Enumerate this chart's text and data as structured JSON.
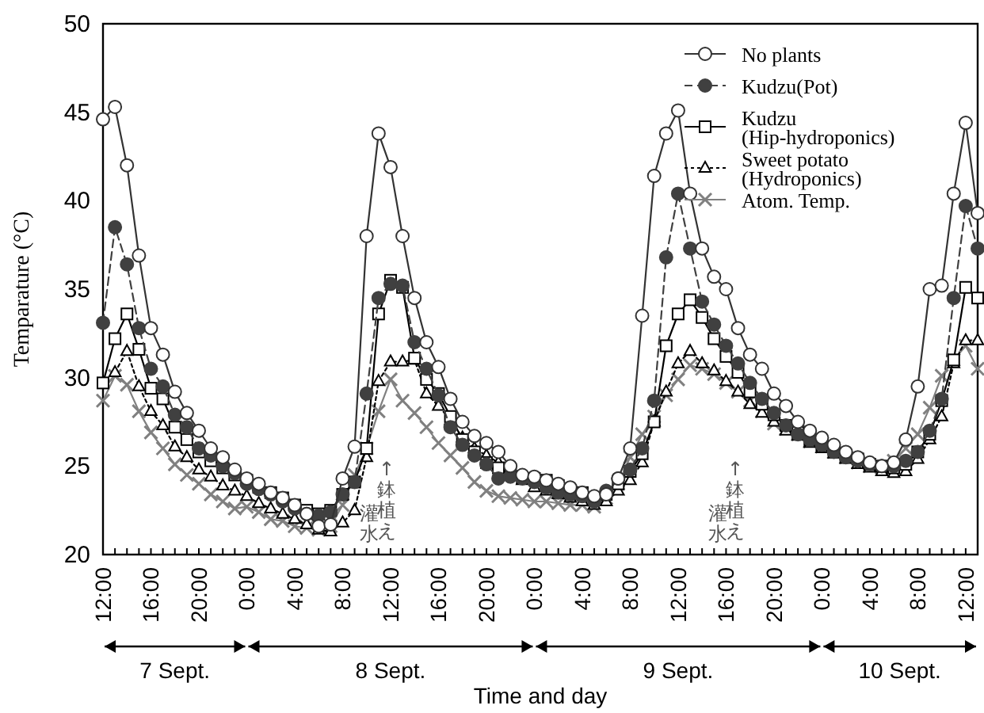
{
  "chart_data": {
    "type": "line",
    "xlabel": "Time and day",
    "ylabel": "Temparature (°C)",
    "x": [
      "--09-07T12:00",
      "--09-07T13:00",
      "--09-07T14:00",
      "--09-07T15:00",
      "--09-07T16:00",
      "--09-07T17:00",
      "--09-07T18:00",
      "--09-07T19:00",
      "--09-07T20:00",
      "--09-07T21:00",
      "--09-07T22:00",
      "--09-07T23:00",
      "--09-08T00:00",
      "--09-08T01:00",
      "--09-08T02:00",
      "--09-08T03:00",
      "--09-08T04:00",
      "--09-08T05:00",
      "--09-08T06:00",
      "--09-08T07:00",
      "--09-08T08:00",
      "--09-08T09:00",
      "--09-08T10:00",
      "--09-08T11:00",
      "--09-08T12:00",
      "--09-08T13:00",
      "--09-08T14:00",
      "--09-08T15:00",
      "--09-08T16:00",
      "--09-08T17:00",
      "--09-08T18:00",
      "--09-08T19:00",
      "--09-08T20:00",
      "--09-08T21:00",
      "--09-08T22:00",
      "--09-08T23:00",
      "--09-09T00:00",
      "--09-09T01:00",
      "--09-09T02:00",
      "--09-09T03:00",
      "--09-09T04:00",
      "--09-09T05:00",
      "--09-09T06:00",
      "--09-09T07:00",
      "--09-09T08:00",
      "--09-09T09:00",
      "--09-09T10:00",
      "--09-09T11:00",
      "--09-09T12:00",
      "--09-09T13:00",
      "--09-09T14:00",
      "--09-09T15:00",
      "--09-09T16:00",
      "--09-09T17:00",
      "--09-09T18:00",
      "--09-09T19:00",
      "--09-09T20:00",
      "--09-09T21:00",
      "--09-09T22:00",
      "--09-09T23:00",
      "--09-10T00:00",
      "--09-10T01:00",
      "--09-10T02:00",
      "--09-10T03:00",
      "--09-10T04:00",
      "--09-10T05:00",
      "--09-10T06:00",
      "--09-10T07:00",
      "--09-10T08:00",
      "--09-10T09:00",
      "--09-10T10:00",
      "--09-10T11:00",
      "--09-10T12:00",
      "--09-10T13:00"
    ],
    "xlim": [
      "--09-07T12:00",
      "--09-10T13:00"
    ],
    "xticks": [
      {
        "value": "--09-07T12:00",
        "label": "12:00"
      },
      {
        "value": "--09-07T13:00",
        "label": null
      },
      {
        "value": "--09-07T14:00",
        "label": null
      },
      {
        "value": "--09-07T15:00",
        "label": null
      },
      {
        "value": "--09-07T16:00",
        "label": "16:00"
      },
      {
        "value": "--09-07T17:00",
        "label": null
      },
      {
        "value": "--09-07T18:00",
        "label": null
      },
      {
        "value": "--09-07T19:00",
        "label": null
      },
      {
        "value": "--09-07T20:00",
        "label": "20:00"
      },
      {
        "value": "--09-07T21:00",
        "label": null
      },
      {
        "value": "--09-07T22:00",
        "label": null
      },
      {
        "value": "--09-07T23:00",
        "label": null
      },
      {
        "value": "--09-08T00:00",
        "label": "0:00"
      },
      {
        "value": "--09-08T01:00",
        "label": null
      },
      {
        "value": "--09-08T02:00",
        "label": null
      },
      {
        "value": "--09-08T03:00",
        "label": null
      },
      {
        "value": "--09-08T04:00",
        "label": "4:00"
      },
      {
        "value": "--09-08T05:00",
        "label": null
      },
      {
        "value": "--09-08T06:00",
        "label": null
      },
      {
        "value": "--09-08T07:00",
        "label": null
      },
      {
        "value": "--09-08T08:00",
        "label": "8:00"
      },
      {
        "value": "--09-08T09:00",
        "label": null
      },
      {
        "value": "--09-08T10:00",
        "label": null
      },
      {
        "value": "--09-08T11:00",
        "label": null
      },
      {
        "value": "--09-08T12:00",
        "label": "12:00"
      },
      {
        "value": "--09-08T13:00",
        "label": null
      },
      {
        "value": "--09-08T14:00",
        "label": null
      },
      {
        "value": "--09-08T15:00",
        "label": null
      },
      {
        "value": "--09-08T16:00",
        "label": "16:00"
      },
      {
        "value": "--09-08T17:00",
        "label": null
      },
      {
        "value": "--09-08T18:00",
        "label": null
      },
      {
        "value": "--09-08T19:00",
        "label": null
      },
      {
        "value": "--09-08T20:00",
        "label": "20:00"
      },
      {
        "value": "--09-08T21:00",
        "label": null
      },
      {
        "value": "--09-08T22:00",
        "label": null
      },
      {
        "value": "--09-08T23:00",
        "label": null
      },
      {
        "value": "--09-09T00:00",
        "label": "0:00"
      },
      {
        "value": "--09-09T01:00",
        "label": null
      },
      {
        "value": "--09-09T02:00",
        "label": null
      },
      {
        "value": "--09-09T03:00",
        "label": null
      },
      {
        "value": "--09-09T04:00",
        "label": "4:00"
      },
      {
        "value": "--09-09T05:00",
        "label": null
      },
      {
        "value": "--09-09T06:00",
        "label": null
      },
      {
        "value": "--09-09T07:00",
        "label": null
      },
      {
        "value": "--09-09T08:00",
        "label": "8:00"
      },
      {
        "value": "--09-09T09:00",
        "label": null
      },
      {
        "value": "--09-09T10:00",
        "label": null
      },
      {
        "value": "--09-09T11:00",
        "label": null
      },
      {
        "value": "--09-09T12:00",
        "label": "12:00"
      },
      {
        "value": "--09-09T13:00",
        "label": null
      },
      {
        "value": "--09-09T14:00",
        "label": null
      },
      {
        "value": "--09-09T15:00",
        "label": null
      },
      {
        "value": "--09-09T16:00",
        "label": "16:00"
      },
      {
        "value": "--09-09T17:00",
        "label": null
      },
      {
        "value": "--09-09T18:00",
        "label": null
      },
      {
        "value": "--09-09T19:00",
        "label": null
      },
      {
        "value": "--09-09T20:00",
        "label": "20:00"
      },
      {
        "value": "--09-09T21:00",
        "label": null
      },
      {
        "value": "--09-09T22:00",
        "label": null
      },
      {
        "value": "--09-09T23:00",
        "label": null
      },
      {
        "value": "--09-10T00:00",
        "label": "0:00"
      },
      {
        "value": "--09-10T01:00",
        "label": null
      },
      {
        "value": "--09-10T02:00",
        "label": null
      },
      {
        "value": "--09-10T03:00",
        "label": null
      },
      {
        "value": "--09-10T04:00",
        "label": "4:00"
      },
      {
        "value": "--09-10T05:00",
        "label": null
      },
      {
        "value": "--09-10T06:00",
        "label": null
      },
      {
        "value": "--09-10T07:00",
        "label": null
      },
      {
        "value": "--09-10T08:00",
        "label": "8:00"
      },
      {
        "value": "--09-10T09:00",
        "label": null
      },
      {
        "value": "--09-10T10:00",
        "label": null
      },
      {
        "value": "--09-10T11:00",
        "label": null
      },
      {
        "value": "--09-10T12:00",
        "label": "12:00"
      },
      {
        "value": "--09-10T13:00",
        "label": null
      }
    ],
    "ylim": [
      20,
      50
    ],
    "yticks": [
      20,
      25,
      30,
      35,
      40,
      45,
      50
    ],
    "grid": false,
    "legend": "top right",
    "series": [
      {
        "name": "No plants",
        "color": "#333333",
        "marker": "circle",
        "line_style": "solid",
        "values": [
          44.6,
          45.3,
          42.0,
          36.9,
          32.8,
          31.3,
          29.2,
          28.0,
          27.0,
          26.0,
          25.5,
          24.8,
          24.3,
          24.0,
          23.5,
          23.2,
          22.8,
          22.3,
          21.6,
          21.7,
          24.3,
          26.1,
          38.0,
          43.8,
          41.9,
          38.0,
          34.5,
          32.0,
          30.6,
          28.8,
          27.5,
          26.7,
          26.3,
          25.8,
          25.0,
          24.5,
          24.4,
          24.2,
          24.0,
          23.8,
          23.5,
          23.3,
          23.4,
          24.3,
          26.0,
          33.5,
          41.4,
          43.8,
          45.1,
          40.4,
          37.3,
          35.7,
          35.0,
          32.8,
          31.3,
          30.5,
          29.1,
          28.4,
          27.5,
          27.0,
          26.6,
          26.2,
          25.8,
          25.5,
          25.2,
          25.0,
          25.2,
          26.5,
          29.5,
          35.0,
          35.2,
          40.4,
          44.4,
          39.3
        ]
      },
      {
        "name": "Kudzu(Pot)",
        "color": "#404040",
        "marker": "circle",
        "line_style": "dashed",
        "values": [
          33.1,
          38.5,
          36.4,
          32.8,
          30.5,
          29.5,
          27.9,
          27.2,
          26.0,
          25.6,
          25.0,
          24.6,
          24.0,
          23.7,
          23.4,
          23.0,
          22.6,
          22.3,
          22.2,
          22.4,
          23.4,
          24.1,
          29.1,
          34.5,
          35.3,
          35.2,
          32.0,
          30.5,
          29.0,
          27.2,
          26.2,
          25.6,
          25.1,
          24.3,
          24.4,
          24.3,
          24.1,
          23.8,
          23.5,
          23.4,
          23.3,
          23.0,
          23.6,
          24.3,
          24.8,
          26.0,
          28.7,
          36.8,
          40.4,
          37.3,
          34.3,
          33.0,
          31.8,
          30.8,
          29.7,
          28.8,
          28.0,
          27.3,
          26.8,
          26.5,
          26.2,
          25.8,
          25.5,
          25.3,
          25.1,
          25.0,
          25.0,
          25.3,
          25.8,
          27.0,
          28.8,
          34.5,
          39.7,
          37.3
        ]
      },
      {
        "name": "Kudzu (Hip-hydroponics)",
        "color": "#000000",
        "marker": "square",
        "line_style": "solid",
        "values": [
          29.7,
          32.2,
          33.6,
          31.6,
          29.4,
          28.8,
          27.2,
          26.5,
          25.8,
          25.3,
          24.9,
          24.5,
          24.2,
          23.8,
          23.5,
          23.2,
          22.8,
          22.5,
          22.3,
          22.5,
          23.4,
          24.1,
          26.0,
          33.6,
          35.5,
          35.1,
          31.1,
          29.9,
          29.1,
          27.8,
          26.5,
          25.8,
          25.2,
          24.9,
          24.8,
          24.3,
          24.3,
          24.2,
          23.9,
          23.6,
          23.5,
          23.2,
          23.4,
          24.0,
          24.7,
          25.7,
          27.5,
          31.8,
          33.6,
          34.4,
          33.4,
          32.2,
          31.2,
          30.3,
          29.2,
          28.5,
          27.9,
          27.3,
          26.9,
          26.5,
          26.2,
          25.9,
          25.6,
          25.4,
          25.1,
          25.0,
          24.9,
          25.1,
          25.8,
          26.8,
          28.7,
          31.0,
          35.1,
          34.5
        ]
      },
      {
        "name": "Sweet potato (Hydroponics)",
        "color": "#000000",
        "marker": "triangle",
        "line_style": "dotted",
        "values": [
          null,
          30.3,
          31.5,
          29.5,
          28.1,
          27.3,
          26.1,
          25.5,
          24.8,
          24.4,
          23.9,
          23.6,
          23.3,
          22.9,
          22.6,
          22.3,
          22.0,
          21.7,
          21.4,
          21.3,
          21.8,
          22.5,
          25.5,
          29.8,
          30.9,
          30.9,
          31.0,
          29.1,
          28.4,
          27.6,
          26.6,
          26.0,
          25.6,
          25.2,
          24.6,
          24.2,
          23.8,
          23.6,
          23.4,
          23.2,
          23.0,
          22.8,
          23.0,
          23.6,
          24.2,
          25.2,
          27.5,
          29.2,
          30.8,
          31.5,
          30.8,
          30.4,
          29.8,
          29.2,
          28.5,
          28.0,
          27.5,
          27.0,
          26.7,
          26.3,
          26.0,
          25.7,
          25.4,
          25.1,
          24.9,
          24.7,
          24.6,
          24.7,
          25.4,
          26.5,
          27.8,
          30.8,
          32.1,
          32.1
        ]
      },
      {
        "name": "Atom. Temp.",
        "color": "#808080",
        "marker": "cross",
        "line_style": "solid",
        "values": [
          28.7,
          30.1,
          29.6,
          28.1,
          26.9,
          26.0,
          25.1,
          24.5,
          24.0,
          23.4,
          23.0,
          22.6,
          22.7,
          22.4,
          22.0,
          21.9,
          21.6,
          21.5,
          21.4,
          21.6,
          22.8,
          24.5,
          26.0,
          28.1,
          29.9,
          28.7,
          28.0,
          27.2,
          26.3,
          25.6,
          24.9,
          24.1,
          23.6,
          23.3,
          23.2,
          23.1,
          23.0,
          23.0,
          22.9,
          22.8,
          22.8,
          22.7,
          23.2,
          24.0,
          25.5,
          26.8,
          27.8,
          29.0,
          29.9,
          30.7,
          30.5,
          30.2,
          29.7,
          29.2,
          28.7,
          28.1,
          27.4,
          27.1,
          26.8,
          26.4,
          26.1,
          25.8,
          25.5,
          25.2,
          25.0,
          24.9,
          25.3,
          26.0,
          26.8,
          28.3,
          30.1,
          31.0,
          31.8,
          30.5
        ]
      }
    ],
    "annotations": [
      "灌水",
      "↑鉢植え",
      "灌水",
      "↑鉢植え",
      "7 Sept.",
      "8 Sept.",
      "9 Sept.",
      "10 Sept."
    ]
  }
}
